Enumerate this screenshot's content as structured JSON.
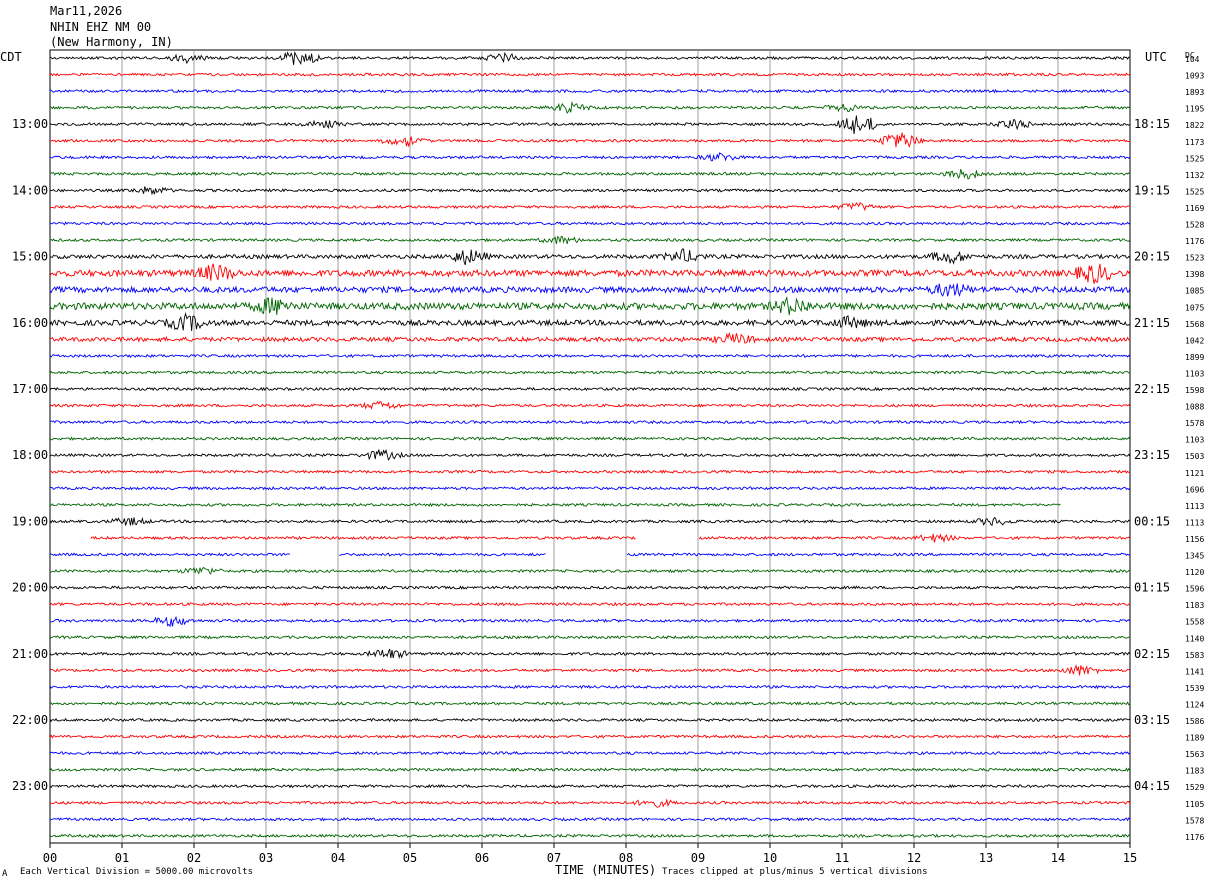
{
  "header": {
    "date": "Mar11,2026",
    "station": "NHIN EHZ NM 00",
    "location": "(New Harmony, IN)"
  },
  "chart_data": {
    "type": "line",
    "title": "",
    "left_axis_label": "CDT",
    "right_axis_label": "UTC",
    "dc_label": "DC",
    "xlabel": "TIME (MINUTES)",
    "xlim": [
      0,
      15
    ],
    "x_ticks": [
      "00",
      "01",
      "02",
      "03",
      "04",
      "05",
      "06",
      "07",
      "08",
      "09",
      "10",
      "11",
      "12",
      "13",
      "14",
      "15"
    ],
    "trace_interval_minutes": 15,
    "trace_count": 48,
    "trace_colors": [
      "#000000",
      "#ff0000",
      "#0000ff",
      "#006400"
    ],
    "left_hour_labels": [
      {
        "trace": 4,
        "label": "13:00"
      },
      {
        "trace": 8,
        "label": "14:00"
      },
      {
        "trace": 12,
        "label": "15:00"
      },
      {
        "trace": 16,
        "label": "16:00"
      },
      {
        "trace": 20,
        "label": "17:00"
      },
      {
        "trace": 24,
        "label": "18:00"
      },
      {
        "trace": 28,
        "label": "19:00"
      },
      {
        "trace": 32,
        "label": "20:00"
      },
      {
        "trace": 36,
        "label": "21:00"
      },
      {
        "trace": 40,
        "label": "22:00"
      },
      {
        "trace": 44,
        "label": "23:00"
      }
    ],
    "right_hour_labels": [
      {
        "trace": 4,
        "label": "18:15"
      },
      {
        "trace": 8,
        "label": "19:15"
      },
      {
        "trace": 12,
        "label": "20:15"
      },
      {
        "trace": 16,
        "label": "21:15"
      },
      {
        "trace": 20,
        "label": "22:15"
      },
      {
        "trace": 24,
        "label": "23:15"
      },
      {
        "trace": 28,
        "label": "00:15"
      },
      {
        "trace": 32,
        "label": "01:15"
      },
      {
        "trace": 36,
        "label": "02:15"
      },
      {
        "trace": 40,
        "label": "03:15"
      },
      {
        "trace": 44,
        "label": "04:15"
      }
    ],
    "dc_offsets": [
      "104",
      "1093",
      "1893",
      "1195",
      "1822",
      "1173",
      "1525",
      "1132",
      "1525",
      "1169",
      "1528",
      "1176",
      "1523",
      "1398",
      "1085",
      "1075",
      "1568",
      "1042",
      "1899",
      "1103",
      "1598",
      "1088",
      "1578",
      "1103",
      "1503",
      "1121",
      "1696",
      "1113",
      "1113",
      "1156",
      "1345",
      "1120",
      "1596",
      "1183",
      "1558",
      "1140",
      "1583",
      "1141",
      "1539",
      "1124",
      "1586",
      "1189",
      "1563",
      "1183",
      "1529",
      "1105",
      "1578",
      "1176"
    ],
    "trace_amplitude": [
      1,
      1,
      1,
      1,
      1,
      1,
      1,
      1,
      1,
      1,
      1,
      1,
      1.5,
      2.4,
      2.2,
      2.6,
      2,
      1.6,
      1,
      1,
      1,
      1,
      1,
      1,
      1,
      1,
      1,
      1,
      1,
      1,
      1,
      1,
      1,
      1,
      1,
      1,
      1,
      1,
      1,
      1,
      1,
      1,
      1,
      1,
      1,
      1,
      1,
      1
    ],
    "events": [
      {
        "trace": 0,
        "minute": 1.9,
        "amplitude": 3.5
      },
      {
        "trace": 0,
        "minute": 3.45,
        "amplitude": 6
      },
      {
        "trace": 0,
        "minute": 6.3,
        "amplitude": 3.5
      },
      {
        "trace": 3,
        "minute": 7.2,
        "amplitude": 4
      },
      {
        "trace": 3,
        "minute": 11.0,
        "amplitude": 3
      },
      {
        "trace": 4,
        "minute": 3.8,
        "amplitude": 3
      },
      {
        "trace": 4,
        "minute": 11.2,
        "amplitude": 10
      },
      {
        "trace": 4,
        "minute": 13.4,
        "amplitude": 4
      },
      {
        "trace": 5,
        "minute": 4.9,
        "amplitude": 5
      },
      {
        "trace": 5,
        "minute": 11.8,
        "amplitude": 7
      },
      {
        "trace": 6,
        "minute": 9.3,
        "amplitude": 3
      },
      {
        "trace": 7,
        "minute": 12.7,
        "amplitude": 4
      },
      {
        "trace": 8,
        "minute": 1.4,
        "amplitude": 3
      },
      {
        "trace": 9,
        "minute": 11.2,
        "amplitude": 3
      },
      {
        "trace": 11,
        "minute": 7.1,
        "amplitude": 3
      },
      {
        "trace": 12,
        "minute": 5.8,
        "amplitude": 6
      },
      {
        "trace": 12,
        "minute": 8.8,
        "amplitude": 5
      },
      {
        "trace": 12,
        "minute": 12.5,
        "amplitude": 5
      },
      {
        "trace": 13,
        "minute": 2.3,
        "amplitude": 6
      },
      {
        "trace": 13,
        "minute": 14.5,
        "amplitude": 7
      },
      {
        "trace": 14,
        "minute": 12.5,
        "amplitude": 5
      },
      {
        "trace": 15,
        "minute": 3.1,
        "amplitude": 6
      },
      {
        "trace": 15,
        "minute": 10.3,
        "amplitude": 6
      },
      {
        "trace": 16,
        "minute": 1.9,
        "amplitude": 6
      },
      {
        "trace": 16,
        "minute": 11.1,
        "amplitude": 4
      },
      {
        "trace": 17,
        "minute": 9.5,
        "amplitude": 4
      },
      {
        "trace": 21,
        "minute": 4.6,
        "amplitude": 3
      },
      {
        "trace": 24,
        "minute": 4.6,
        "amplitude": 4
      },
      {
        "trace": 28,
        "minute": 1.1,
        "amplitude": 3
      },
      {
        "trace": 28,
        "minute": 13.1,
        "amplitude": 3
      },
      {
        "trace": 29,
        "minute": 12.3,
        "amplitude": 3
      },
      {
        "trace": 31,
        "minute": 2.1,
        "amplitude": 3
      },
      {
        "trace": 34,
        "minute": 1.7,
        "amplitude": 4
      },
      {
        "trace": 36,
        "minute": 4.7,
        "amplitude": 4
      },
      {
        "trace": 37,
        "minute": 14.3,
        "amplitude": 4
      },
      {
        "trace": 45,
        "minute": 8.4,
        "amplitude": 3
      }
    ],
    "gaps": [
      {
        "trace": 27,
        "start": 14.05,
        "end": 15
      },
      {
        "trace": 29,
        "start": 0,
        "end": 0.55
      },
      {
        "trace": 29,
        "start": 8.15,
        "end": 9.0
      },
      {
        "trace": 30,
        "start": 3.35,
        "end": 4.0
      },
      {
        "trace": 30,
        "start": 6.9,
        "end": 8.0
      }
    ]
  },
  "footer": {
    "scale_note": "Each Vertical Division = 5000.00 microvolts",
    "clip_note": "Traces clipped at plus/minus 5 vertical divisions",
    "corner_mark": "A"
  }
}
